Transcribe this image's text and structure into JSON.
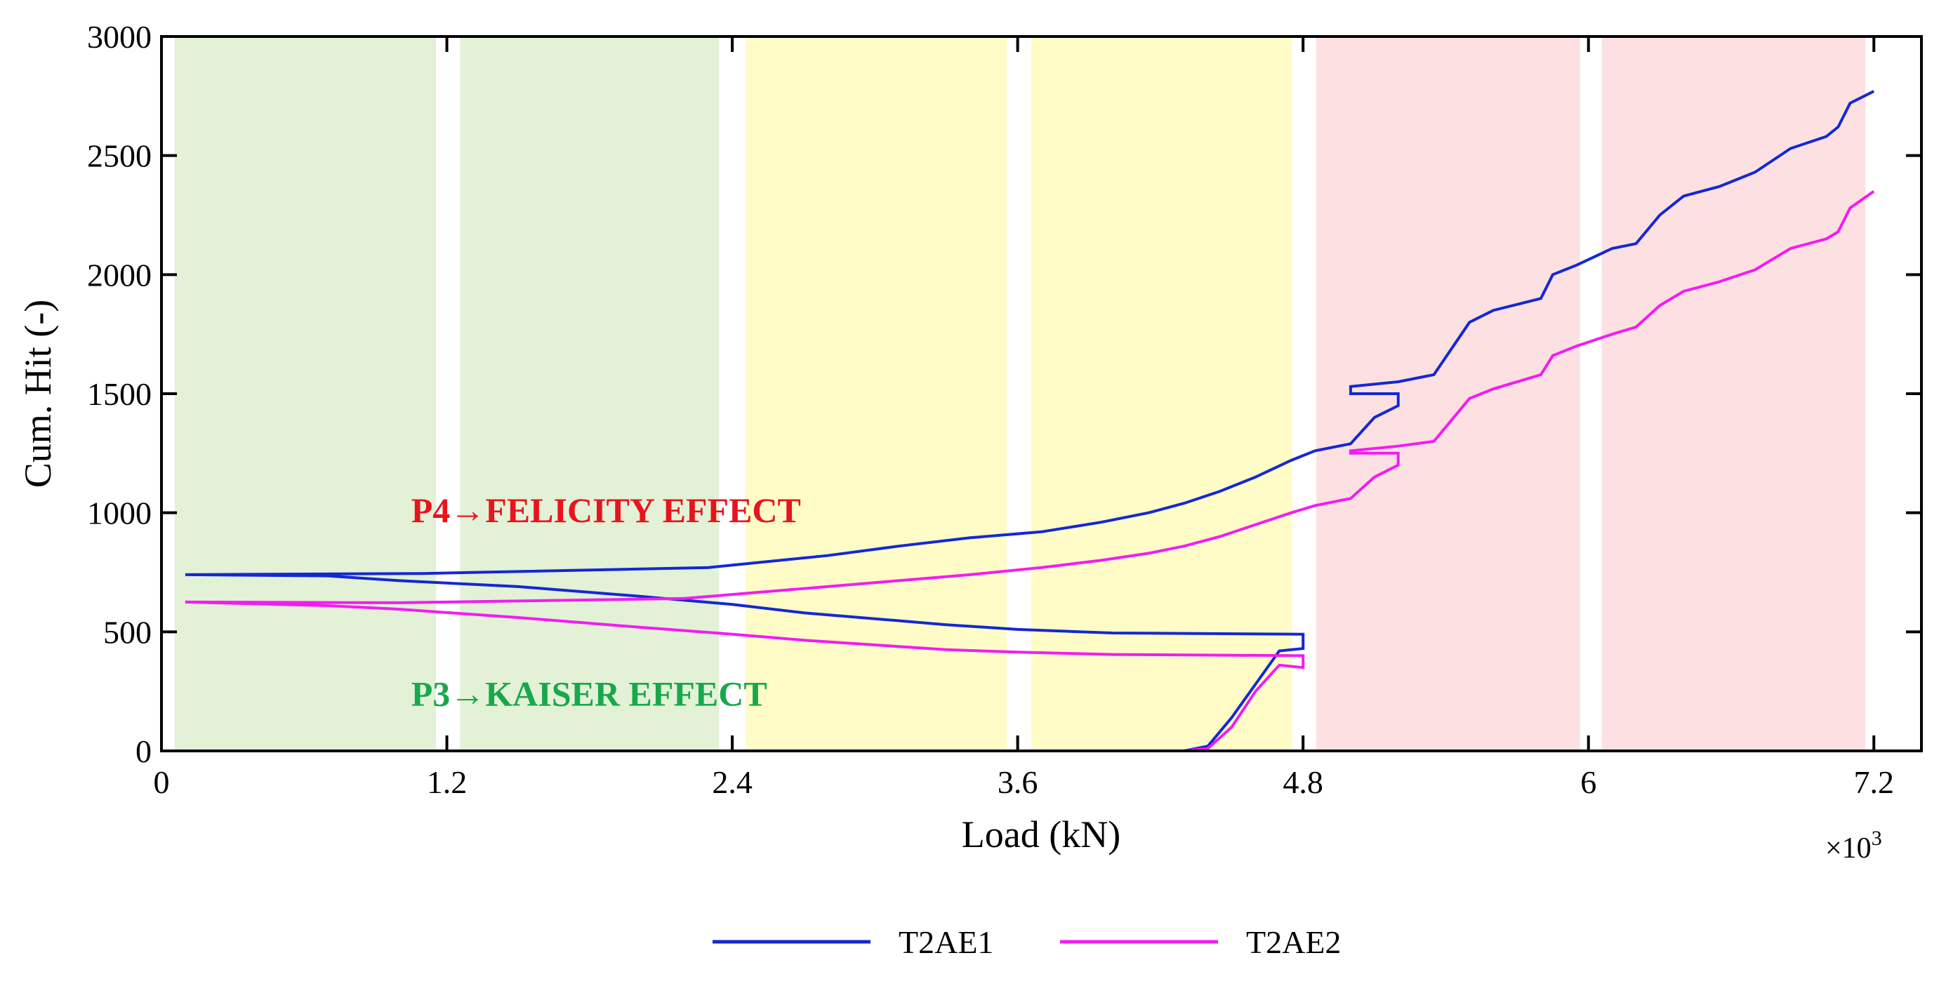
{
  "chart_data": {
    "type": "line",
    "xlabel": "Load (kN)",
    "ylabel": "Cum. Hit (-)",
    "x_multiplier": {
      "base": "×10",
      "exponent": "3"
    },
    "xlim": [
      0,
      7.4
    ],
    "ylim": [
      0,
      3000
    ],
    "x_ticks": [
      0,
      1.2,
      2.4,
      3.6,
      4.8,
      6,
      7.2
    ],
    "x_tick_labels": [
      "0",
      "1.2",
      "2.4",
      "3.6",
      "4.8",
      "6",
      "7.2"
    ],
    "y_ticks": [
      0,
      500,
      1000,
      1500,
      2000,
      2500,
      3000
    ],
    "y_tick_labels": [
      "0",
      "500",
      "1000",
      "1500",
      "2000",
      "2500",
      "3000"
    ],
    "shaded_regions": [
      {
        "x0": 0.06,
        "x1": 1.15,
        "color": "#e3f1d6"
      },
      {
        "x0": 1.26,
        "x1": 2.34,
        "color": "#e3f1d6"
      },
      {
        "x0": 2.46,
        "x1": 3.55,
        "color": "#fffcc8"
      },
      {
        "x0": 3.66,
        "x1": 4.75,
        "color": "#fffcc8"
      },
      {
        "x0": 4.86,
        "x1": 5.96,
        "color": "#fde0e1"
      },
      {
        "x0": 6.06,
        "x1": 7.16,
        "color": "#fde0e1"
      }
    ],
    "annotations": [
      {
        "text": "P4→FELICITY EFFECT",
        "x": 1.05,
        "y": 960,
        "color": "#e8141c"
      },
      {
        "text": "P3→KAISER EFFECT",
        "x": 1.05,
        "y": 190,
        "color": "#18a84b"
      }
    ],
    "legend": {
      "position": "bottom-center"
    },
    "series": [
      {
        "name": "T2AE1",
        "color": "#1428d2",
        "points": [
          [
            0.1,
            740
          ],
          [
            1.1,
            745
          ],
          [
            2.3,
            770
          ],
          [
            2.5,
            790
          ],
          [
            2.8,
            820
          ],
          [
            3.1,
            860
          ],
          [
            3.4,
            895
          ],
          [
            3.7,
            920
          ],
          [
            3.95,
            960
          ],
          [
            4.15,
            1000
          ],
          [
            4.3,
            1040
          ],
          [
            4.45,
            1090
          ],
          [
            4.6,
            1150
          ],
          [
            4.75,
            1220
          ],
          [
            4.85,
            1260
          ],
          [
            5.0,
            1290
          ],
          [
            5.1,
            1400
          ],
          [
            5.2,
            1450
          ],
          [
            5.2,
            1500
          ],
          [
            5.1,
            1500
          ],
          [
            5.0,
            1500
          ],
          [
            5.0,
            1530
          ],
          [
            5.2,
            1550
          ],
          [
            5.35,
            1580
          ],
          [
            5.5,
            1800
          ],
          [
            5.6,
            1850
          ],
          [
            5.8,
            1900
          ],
          [
            5.85,
            2000
          ],
          [
            5.95,
            2040
          ],
          [
            6.1,
            2110
          ],
          [
            6.2,
            2130
          ],
          [
            6.3,
            2250
          ],
          [
            6.4,
            2330
          ],
          [
            6.55,
            2370
          ],
          [
            6.7,
            2430
          ],
          [
            6.85,
            2530
          ],
          [
            7.0,
            2580
          ],
          [
            7.05,
            2620
          ],
          [
            7.1,
            2720
          ],
          [
            7.2,
            2770
          ],
          null,
          [
            0.1,
            740
          ],
          [
            0.7,
            735
          ],
          [
            1.0,
            715
          ],
          [
            1.5,
            690
          ],
          [
            2.0,
            650
          ],
          [
            2.4,
            615
          ],
          [
            2.7,
            580
          ],
          [
            3.0,
            555
          ],
          [
            3.3,
            530
          ],
          [
            3.6,
            510
          ],
          [
            4.0,
            495
          ],
          [
            4.8,
            490
          ],
          [
            4.8,
            430
          ],
          [
            4.7,
            420
          ],
          [
            4.6,
            280
          ],
          [
            4.5,
            140
          ],
          [
            4.4,
            20
          ],
          [
            4.3,
            0
          ],
          [
            1.9,
            0
          ]
        ]
      },
      {
        "name": "T2AE2",
        "color": "#f21cf2",
        "points": [
          [
            0.1,
            625
          ],
          [
            1.0,
            622
          ],
          [
            2.2,
            640
          ],
          [
            2.5,
            665
          ],
          [
            2.8,
            690
          ],
          [
            3.1,
            715
          ],
          [
            3.4,
            740
          ],
          [
            3.7,
            770
          ],
          [
            3.95,
            800
          ],
          [
            4.15,
            830
          ],
          [
            4.3,
            860
          ],
          [
            4.45,
            900
          ],
          [
            4.6,
            950
          ],
          [
            4.75,
            1000
          ],
          [
            4.85,
            1030
          ],
          [
            5.0,
            1060
          ],
          [
            5.1,
            1150
          ],
          [
            5.2,
            1200
          ],
          [
            5.2,
            1250
          ],
          [
            5.1,
            1250
          ],
          [
            5.0,
            1250
          ],
          [
            5.0,
            1260
          ],
          [
            5.2,
            1280
          ],
          [
            5.35,
            1300
          ],
          [
            5.5,
            1480
          ],
          [
            5.6,
            1520
          ],
          [
            5.8,
            1580
          ],
          [
            5.85,
            1660
          ],
          [
            5.95,
            1700
          ],
          [
            6.1,
            1750
          ],
          [
            6.2,
            1780
          ],
          [
            6.3,
            1870
          ],
          [
            6.4,
            1930
          ],
          [
            6.55,
            1970
          ],
          [
            6.7,
            2020
          ],
          [
            6.85,
            2110
          ],
          [
            7.0,
            2150
          ],
          [
            7.05,
            2180
          ],
          [
            7.1,
            2280
          ],
          [
            7.2,
            2350
          ],
          null,
          [
            0.1,
            625
          ],
          [
            0.7,
            610
          ],
          [
            1.0,
            595
          ],
          [
            1.5,
            560
          ],
          [
            2.0,
            520
          ],
          [
            2.4,
            490
          ],
          [
            2.7,
            465
          ],
          [
            3.0,
            445
          ],
          [
            3.3,
            425
          ],
          [
            3.6,
            415
          ],
          [
            4.0,
            405
          ],
          [
            4.8,
            400
          ],
          [
            4.8,
            350
          ],
          [
            4.7,
            360
          ],
          [
            4.6,
            250
          ],
          [
            4.5,
            100
          ],
          [
            4.4,
            10
          ],
          [
            4.3,
            0
          ],
          [
            1.9,
            0
          ]
        ]
      }
    ]
  }
}
